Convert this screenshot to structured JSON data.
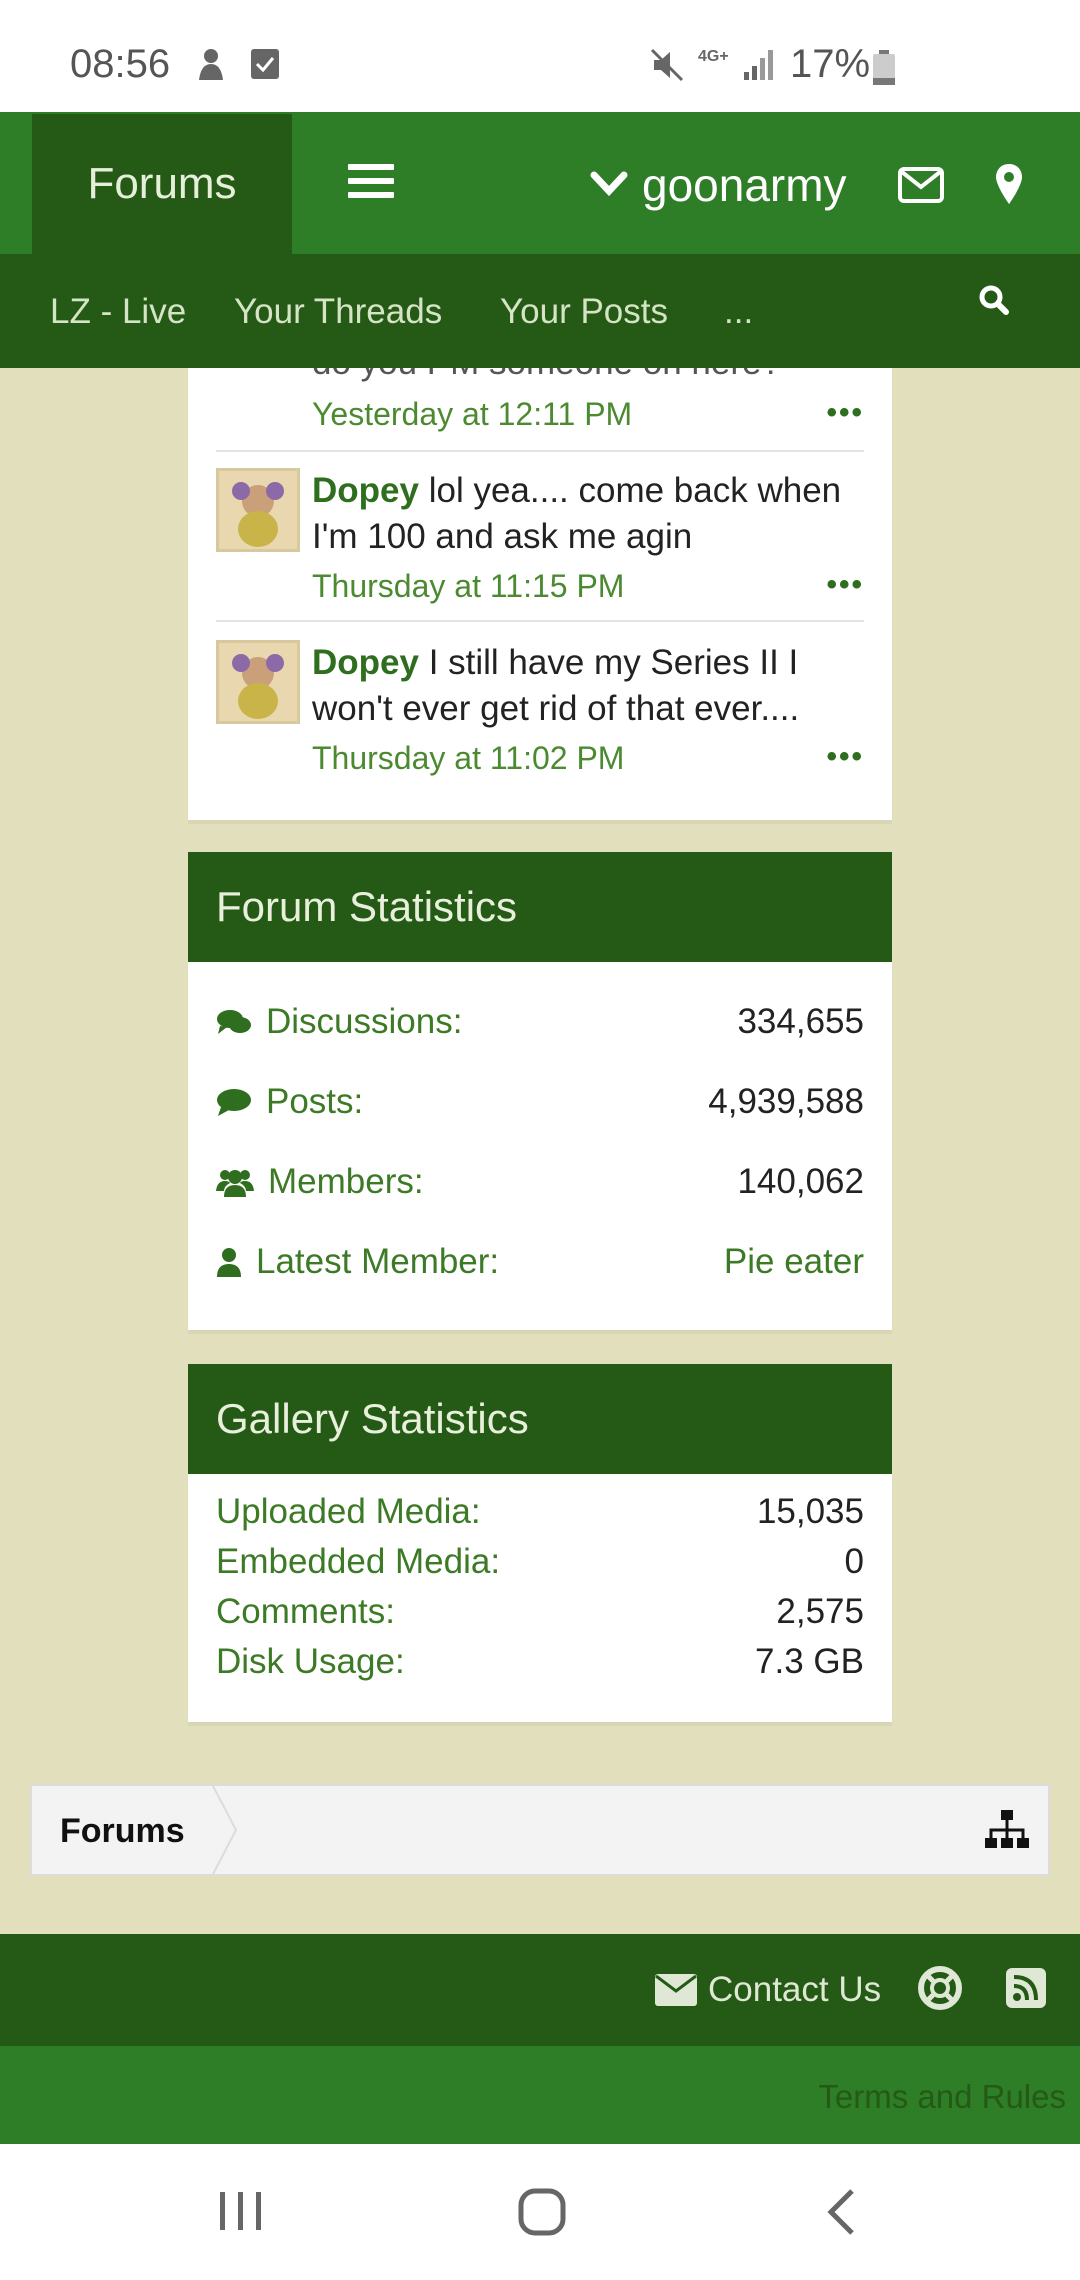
{
  "status_bar": {
    "time": "08:56",
    "network": "4G+",
    "battery": "17%"
  },
  "top_nav": {
    "forums_label": "Forums",
    "username": "goonarmy"
  },
  "sub_nav": {
    "items": [
      "LZ - Live",
      "Your Threads",
      "Your Posts",
      "..."
    ]
  },
  "profile_posts": {
    "partial_text": "do you PM someone on here?",
    "partial_time": "Yesterday at 12:11 PM",
    "posts": [
      {
        "author": "Dopey",
        "text": "lol yea.... come back when I'm 100 and ask me agin",
        "time": "Thursday at 11:15 PM"
      },
      {
        "author": "Dopey",
        "text": "I still have my Series II I won't ever get rid of that ever....",
        "time": "Thursday at 11:02 PM"
      }
    ],
    "more_label": "•••"
  },
  "forum_stats": {
    "title": "Forum Statistics",
    "discussions_label": "Discussions:",
    "discussions": "334,655",
    "posts_label": "Posts:",
    "posts": "4,939,588",
    "members_label": "Members:",
    "members": "140,062",
    "latest_label": "Latest Member:",
    "latest": "Pie eater"
  },
  "gallery_stats": {
    "title": "Gallery Statistics",
    "uploaded_label": "Uploaded Media:",
    "uploaded": "15,035",
    "embedded_label": "Embedded Media:",
    "embedded": "0",
    "comments_label": "Comments:",
    "comments": "2,575",
    "disk_label": "Disk Usage:",
    "disk": "7.3 GB"
  },
  "breadcrumb": {
    "label": "Forums"
  },
  "footer": {
    "contact_label": "Contact Us",
    "terms_label": "Terms and Rules"
  },
  "colors": {
    "dark_green": "#245a15",
    "green": "#2e7d27",
    "background": "#e2e0bc"
  }
}
